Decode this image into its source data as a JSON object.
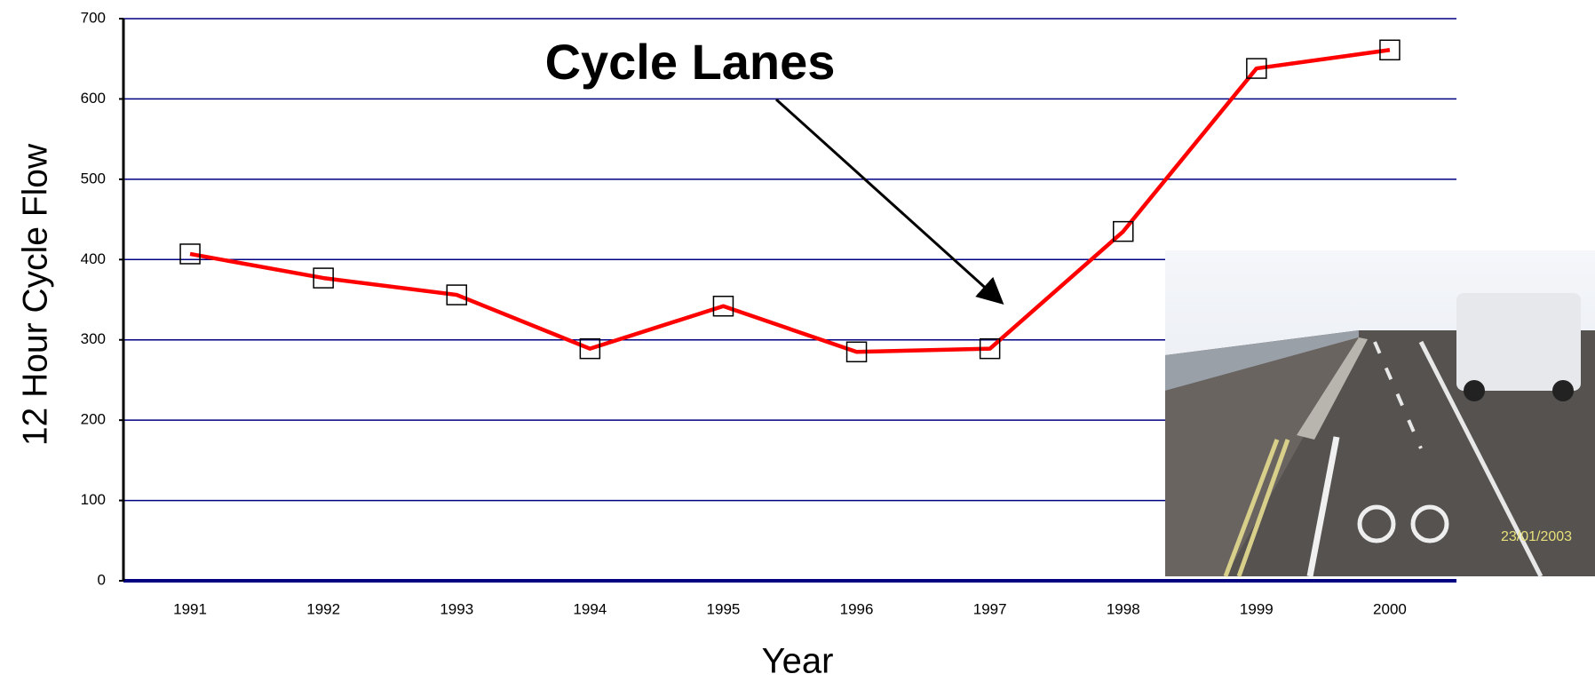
{
  "chart_data": {
    "type": "line",
    "annotation": "Cycle Lanes",
    "x_label": "Year",
    "y_label": "12 Hour Cycle Flow",
    "categories": [
      "1991",
      "1992",
      "1993",
      "1994",
      "1995",
      "1996",
      "1997",
      "1998",
      "1999",
      "2000"
    ],
    "series": [
      {
        "name": "12 Hour Cycle Flow",
        "color": "#ff0000",
        "values": [
          407,
          377,
          356,
          289,
          342,
          285,
          289,
          435,
          638,
          661
        ]
      }
    ],
    "ylim": [
      0,
      700
    ],
    "yticks": [
      0,
      100,
      200,
      300,
      400,
      500,
      600,
      700
    ],
    "grid": true,
    "grid_color": "#000080",
    "photo_date": "23/01/2003"
  }
}
